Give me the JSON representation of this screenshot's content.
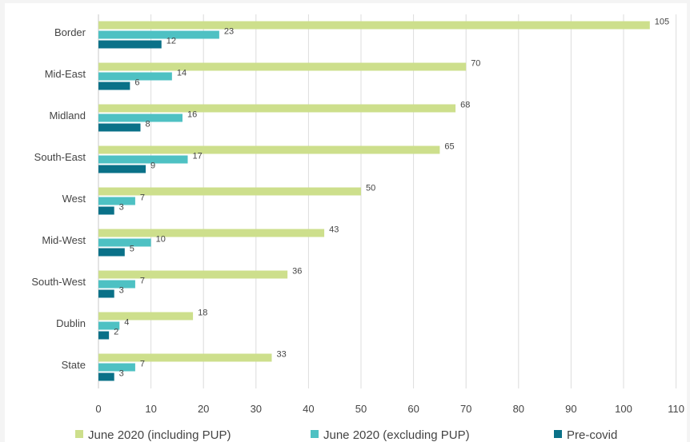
{
  "chart_data": {
    "type": "bar",
    "orientation": "horizontal",
    "categories": [
      "Border",
      "Mid-East",
      "Midland",
      "South-East",
      "West",
      "Mid-West",
      "South-West",
      "Dublin",
      "State"
    ],
    "series": [
      {
        "name": "June 2020 (including PUP)",
        "color": "#cddf8c",
        "values": [
          105,
          70,
          68,
          65,
          50,
          43,
          36,
          18,
          33
        ]
      },
      {
        "name": "June 2020 (excluding PUP)",
        "color": "#4ec1c3",
        "values": [
          23,
          14,
          16,
          17,
          7,
          10,
          7,
          4,
          7
        ]
      },
      {
        "name": "Pre-covid",
        "color": "#0a7188",
        "values": [
          12,
          6,
          8,
          9,
          3,
          5,
          3,
          2,
          3
        ]
      }
    ],
    "xlim": [
      0,
      110
    ],
    "xticks": [
      0,
      10,
      20,
      30,
      40,
      50,
      60,
      70,
      80,
      90,
      100,
      110
    ],
    "grid": "vertical",
    "legend": "bottom",
    "title": "",
    "xlabel": "",
    "ylabel": ""
  }
}
